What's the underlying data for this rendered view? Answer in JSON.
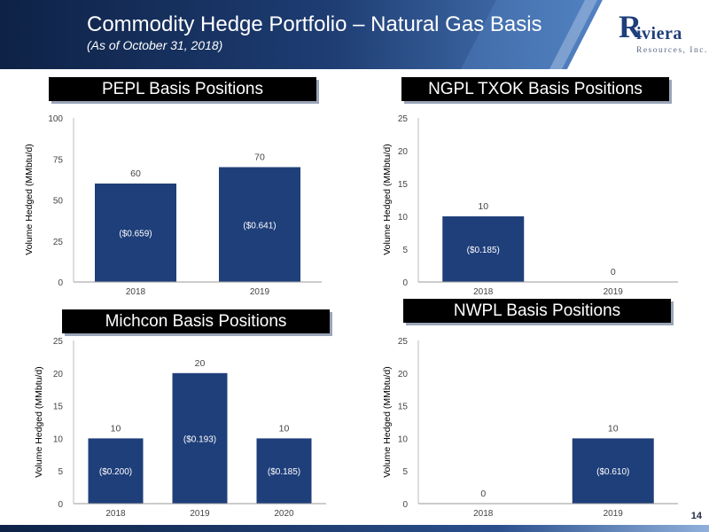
{
  "header": {
    "title": "Commodity Hedge Portfolio – Natural Gas Basis",
    "subtitle": "(As of October 31, 2018)",
    "logo_letter": "R",
    "logo_name": "iviera",
    "logo_sub": "Resources, Inc."
  },
  "page_number": "14",
  "colors": {
    "bar": "#1f3f7a",
    "axis_text": "#444444",
    "header_dark": "#0e2246",
    "header_light": "#3c69a8"
  },
  "panels": [
    {
      "title": "PEPL Basis Positions"
    },
    {
      "title": "NGPL TXOK Basis Positions"
    },
    {
      "title": "Michcon Basis Positions"
    },
    {
      "title": "NWPL Basis Positions"
    }
  ],
  "chart_data": [
    {
      "type": "bar",
      "title": "PEPL Basis Positions",
      "ylabel": "Volume Hedged (MMbtu/d)",
      "categories": [
        "2018",
        "2019"
      ],
      "values": [
        60,
        70
      ],
      "value_labels": [
        "60",
        "70"
      ],
      "inner_labels": [
        "($0.659)",
        "($0.641)"
      ],
      "ylim": [
        0,
        100
      ],
      "yticks": [
        "0",
        "25",
        "50",
        "75",
        "100"
      ]
    },
    {
      "type": "bar",
      "title": "NGPL TXOK Basis Positions",
      "ylabel": "Volume Hedged (MMbtu/d)",
      "categories": [
        "2018",
        "2019"
      ],
      "values": [
        10,
        0
      ],
      "value_labels": [
        "10",
        "0"
      ],
      "inner_labels": [
        "($0.185)",
        ""
      ],
      "ylim": [
        0,
        25
      ],
      "yticks": [
        "0",
        "5",
        "10",
        "15",
        "20",
        "25"
      ]
    },
    {
      "type": "bar",
      "title": "Michcon Basis Positions",
      "ylabel": "Volume Hedged (MMbtu/d)",
      "categories": [
        "2018",
        "2019",
        "2020"
      ],
      "values": [
        10,
        20,
        10
      ],
      "value_labels": [
        "10",
        "20",
        "10"
      ],
      "inner_labels": [
        "($0.200)",
        "($0.193)",
        "($0.185)"
      ],
      "ylim": [
        0,
        25
      ],
      "yticks": [
        "0",
        "5",
        "10",
        "15",
        "20",
        "25"
      ]
    },
    {
      "type": "bar",
      "title": "NWPL Basis Positions",
      "ylabel": "Volume Hedged (MMbtu/d)",
      "categories": [
        "2018",
        "2019"
      ],
      "values": [
        0,
        10
      ],
      "value_labels": [
        "0",
        "10"
      ],
      "inner_labels": [
        "",
        "($0.610)"
      ],
      "ylim": [
        0,
        25
      ],
      "yticks": [
        "0",
        "5",
        "10",
        "15",
        "20",
        "25"
      ]
    }
  ]
}
